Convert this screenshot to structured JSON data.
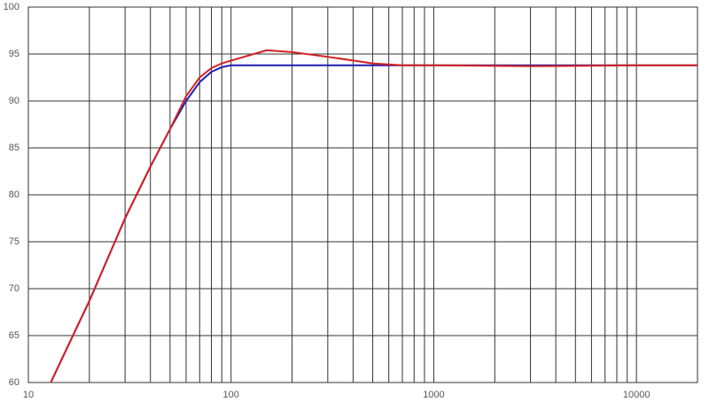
{
  "chart_data": {
    "type": "line",
    "x": [
      12.9,
      15,
      20,
      30,
      40,
      50,
      60,
      70,
      80,
      90,
      100,
      150,
      200,
      300,
      500,
      700,
      1000,
      3000,
      10000,
      20000
    ],
    "series": [
      {
        "color": "#1f1fb0",
        "values": [
          60,
          63,
          68.7,
          77.5,
          83,
          87,
          90,
          92,
          93.1,
          93.6,
          93.8,
          93.8,
          93.8,
          93.8,
          93.8,
          93.8,
          93.8,
          93.8,
          93.8,
          93.8
        ]
      },
      {
        "color": "#d42020",
        "values": [
          60,
          63,
          68.7,
          77.5,
          83,
          87,
          90.5,
          92.5,
          93.5,
          94,
          94.3,
          95.4,
          95.2,
          94.7,
          94,
          93.8,
          93.8,
          93.7,
          93.8,
          93.8
        ]
      }
    ],
    "xscale": "log",
    "xlim": [
      10,
      20000
    ],
    "xticks": [
      10,
      100,
      1000,
      10000
    ],
    "xgrid": [
      20,
      30,
      40,
      50,
      60,
      70,
      80,
      90,
      200,
      300,
      400,
      500,
      600,
      700,
      800,
      900,
      2000,
      3000,
      4000,
      5000,
      6000,
      7000,
      8000,
      9000
    ],
    "ylim": [
      60,
      100
    ],
    "yticks": [
      60,
      65,
      70,
      75,
      80,
      85,
      90,
      95,
      100
    ],
    "grid": true
  }
}
